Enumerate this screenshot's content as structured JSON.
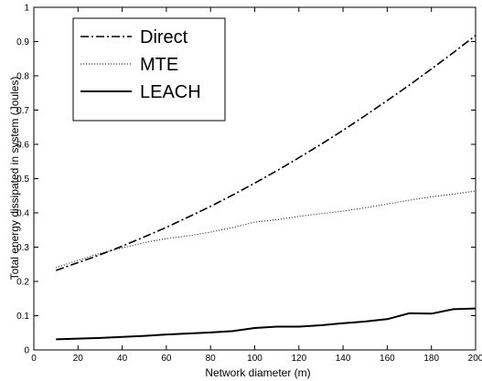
{
  "chart_data": {
    "type": "line",
    "xlabel": "Network diameter (m)",
    "ylabel": "Total energy dissipated in system (Joules)",
    "xlim": [
      0,
      200
    ],
    "ylim": [
      0,
      1
    ],
    "xticks": [
      0,
      20,
      40,
      60,
      80,
      100,
      120,
      140,
      160,
      180,
      200
    ],
    "yticks": [
      0,
      0.1,
      0.2,
      0.3,
      0.4,
      0.5,
      0.6,
      0.7,
      0.8,
      0.9,
      1
    ],
    "ytick_labels": [
      "0",
      "0.1",
      "0.2",
      "0.3",
      "0.4",
      "0.5",
      "0.6",
      "0.7",
      "0.8",
      "0.9",
      "1"
    ],
    "grid": false,
    "legend_position": "top-left",
    "x": [
      10,
      20,
      30,
      40,
      50,
      60,
      70,
      80,
      90,
      100,
      110,
      120,
      130,
      140,
      150,
      160,
      170,
      180,
      190,
      200
    ],
    "series": [
      {
        "name": "Direct",
        "style": "dashdot",
        "color": "#000000",
        "values": [
          0.232,
          0.255,
          0.278,
          0.303,
          0.33,
          0.358,
          0.388,
          0.419,
          0.452,
          0.487,
          0.523,
          0.561,
          0.6,
          0.641,
          0.684,
          0.728,
          0.773,
          0.82,
          0.868,
          0.918
        ]
      },
      {
        "name": "MTE",
        "style": "dotted",
        "color": "#000000",
        "values": [
          0.24,
          0.262,
          0.282,
          0.298,
          0.313,
          0.325,
          0.333,
          0.344,
          0.357,
          0.373,
          0.38,
          0.39,
          0.398,
          0.405,
          0.415,
          0.426,
          0.437,
          0.447,
          0.455,
          0.464
        ]
      },
      {
        "name": "LEACH",
        "style": "solid",
        "color": "#000000",
        "values": [
          0.031,
          0.033,
          0.035,
          0.038,
          0.041,
          0.045,
          0.048,
          0.051,
          0.055,
          0.064,
          0.068,
          0.068,
          0.072,
          0.078,
          0.083,
          0.09,
          0.107,
          0.106,
          0.119,
          0.121
        ]
      }
    ]
  }
}
